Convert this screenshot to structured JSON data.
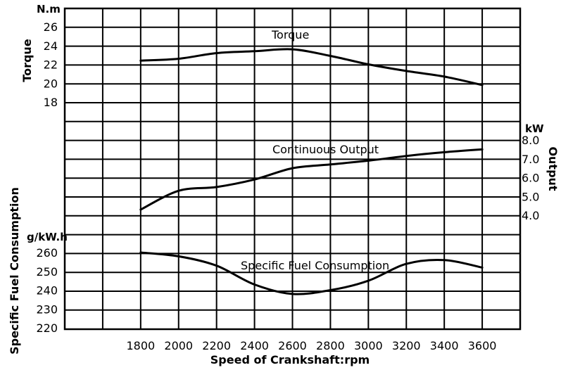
{
  "chart_data": {
    "type": "line",
    "xlabel": "Speed of Crankshaft:rpm",
    "x_ticks": [
      "1800",
      "2000",
      "2200",
      "2400",
      "2600",
      "2800",
      "3000",
      "3200",
      "3400",
      "3600"
    ],
    "xlim": [
      1400,
      3800
    ],
    "axes": {
      "torque": {
        "label": "Torque",
        "unit": "N.m",
        "ticks": [
          "26",
          "24",
          "22",
          "20",
          "18"
        ],
        "range": [
          18,
          26
        ]
      },
      "output": {
        "label": "Output",
        "unit": "kW",
        "ticks": [
          "8.0",
          "7.0",
          "6.0",
          "5.0",
          "4.0"
        ],
        "range": [
          4.0,
          8.0
        ]
      },
      "fuel": {
        "label": "Specific Fuel Consumption",
        "unit": "g/kW.h",
        "ticks": [
          "260",
          "250",
          "240",
          "230",
          "220"
        ],
        "range": [
          220,
          260
        ]
      }
    },
    "series": [
      {
        "name": "Torque",
        "axis": "torque",
        "x": [
          1800,
          2000,
          2200,
          2400,
          2600,
          2800,
          3000,
          3200,
          3400,
          3600
        ],
        "y": [
          22.4,
          22.6,
          23.2,
          23.4,
          23.6,
          22.9,
          22.0,
          21.3,
          20.7,
          19.8
        ]
      },
      {
        "name": "Continuous Output",
        "axis": "output",
        "x": [
          1800,
          2000,
          2200,
          2400,
          2600,
          2800,
          3000,
          3200,
          3400,
          3600
        ],
        "y": [
          4.3,
          5.3,
          5.5,
          5.9,
          6.5,
          6.7,
          6.9,
          7.15,
          7.35,
          7.5
        ]
      },
      {
        "name": "Specific Fuel Consumption",
        "axis": "fuel",
        "x": [
          1800,
          2000,
          2200,
          2400,
          2600,
          2800,
          3000,
          3200,
          3400,
          3600
        ],
        "y": [
          260,
          258,
          253,
          243,
          238,
          240,
          245,
          254,
          256,
          252
        ]
      }
    ],
    "grid": true,
    "legend": "none"
  }
}
